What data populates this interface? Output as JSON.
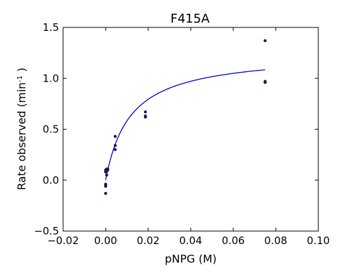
{
  "chart_data": {
    "type": "scatter",
    "title": "F415A",
    "xlabel": "pNPG (M)",
    "ylabel_main": "Rate observed (min",
    "ylabel_sup": "-1",
    "ylabel_end": " )",
    "xlim": [
      -0.02,
      0.1
    ],
    "ylim": [
      -0.5,
      1.5
    ],
    "xticks": [
      -0.02,
      0.0,
      0.02,
      0.04,
      0.06,
      0.08,
      0.1
    ],
    "xtick_labels": [
      "−0.02",
      "0.00",
      "0.02",
      "0.04",
      "0.06",
      "0.08",
      "0.10"
    ],
    "yticks": [
      -0.5,
      0.0,
      0.5,
      1.0,
      1.5
    ],
    "ytick_labels": [
      "−0.5",
      "0.0",
      "0.5",
      "1.0",
      "1.5"
    ],
    "grid": false,
    "point_color": "#1a1a4a",
    "curve_color": "#0000cc",
    "points": [
      {
        "x": 0.0,
        "y": -0.13
      },
      {
        "x": 0.0,
        "y": -0.06
      },
      {
        "x": 0.0,
        "y": -0.05
      },
      {
        "x": 0.0,
        "y": -0.04
      },
      {
        "x": 0.0,
        "y": 0.08
      },
      {
        "x": 0.0,
        "y": 0.09
      },
      {
        "x": 0.0,
        "y": 0.1
      },
      {
        "x": 0.0005,
        "y": 0.05
      },
      {
        "x": 0.0005,
        "y": 0.09
      },
      {
        "x": 0.0005,
        "y": 0.11
      },
      {
        "x": 0.001,
        "y": 0.1
      },
      {
        "x": 0.001,
        "y": 0.11
      },
      {
        "x": 0.0045,
        "y": 0.43
      },
      {
        "x": 0.0045,
        "y": 0.34
      },
      {
        "x": 0.0045,
        "y": 0.3
      },
      {
        "x": 0.0187,
        "y": 0.67
      },
      {
        "x": 0.0187,
        "y": 0.62
      },
      {
        "x": 0.0187,
        "y": 0.63
      },
      {
        "x": 0.075,
        "y": 1.37
      },
      {
        "x": 0.075,
        "y": 0.97
      },
      {
        "x": 0.075,
        "y": 0.96
      }
    ],
    "fit_curve": {
      "model": "michaelis-menten",
      "vmax": 1.25,
      "km": 0.0115,
      "x_range": [
        0.0,
        0.075
      ]
    }
  }
}
